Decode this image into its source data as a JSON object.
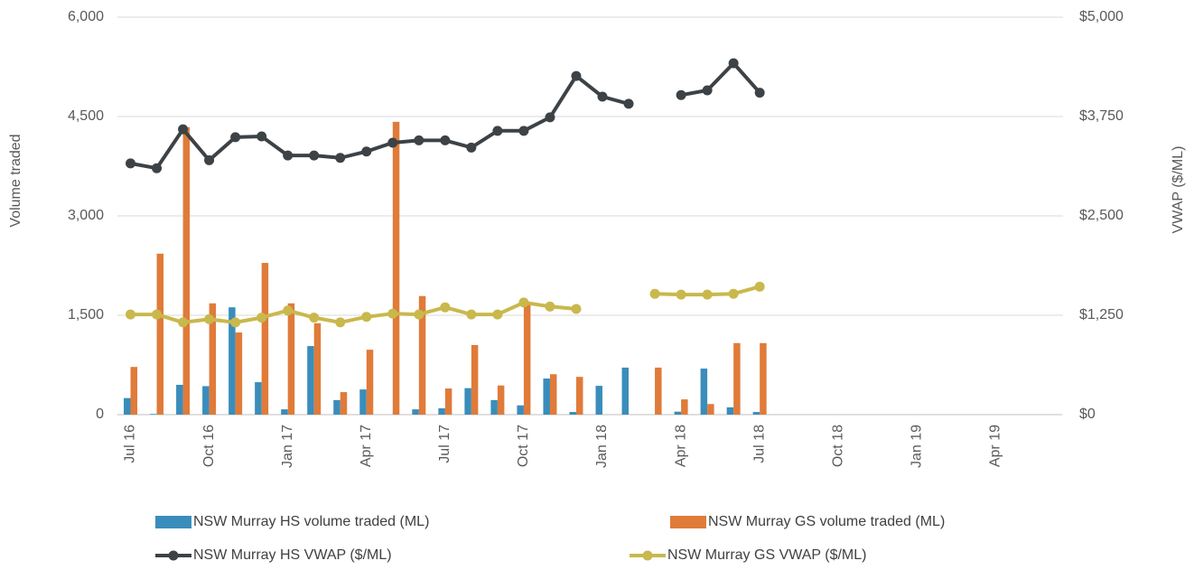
{
  "chart_data": {
    "type": "bar_line",
    "y_label": "Volume traded",
    "y2_label": "VWAP ($/ML)",
    "categories": [
      "Jul 16",
      null,
      null,
      "Oct 16",
      null,
      null,
      "Jan 17",
      null,
      null,
      "Apr 17",
      null,
      null,
      "Jul 17",
      null,
      null,
      "Oct 17",
      null,
      null,
      "Jan 18",
      null,
      null,
      "Apr 18",
      null,
      null,
      "Jul 18",
      null,
      null,
      "Oct 18",
      null,
      null,
      "Jan 19",
      null,
      null,
      "Apr 19",
      null,
      null
    ],
    "ylim": [
      0,
      6000
    ],
    "yticks": [
      0,
      {
        "value": 1500,
        "label": "1,500"
      },
      {
        "value": 3000,
        "label": "3,000"
      },
      {
        "value": 4500,
        "label": "4,500"
      },
      {
        "value": 6000,
        "label": "6,000"
      }
    ],
    "y2lim": [
      0,
      5000
    ],
    "y2ticks": [
      {
        "value": 0,
        "label": "$0"
      },
      {
        "value": 1250,
        "label": "$1,250"
      },
      {
        "value": 2500,
        "label": "$2,500"
      },
      {
        "value": 3750,
        "label": "$3,750"
      },
      {
        "value": 5000,
        "label": "$5,000"
      }
    ],
    "grid": true,
    "legend": "bottom",
    "series": [
      {
        "name": "NSW Murray HS volume traded (ML)",
        "type": "bar",
        "color": "#3a8dbb",
        "values": [
          250,
          10,
          450,
          430,
          1620,
          490,
          80,
          1035,
          220,
          380,
          0,
          80,
          95,
          400,
          220,
          140,
          545,
          40,
          435,
          710,
          0,
          45,
          695,
          110,
          40,
          null,
          null,
          null,
          null,
          null,
          null,
          null,
          null,
          null,
          null,
          null
        ]
      },
      {
        "name": "NSW Murray GS volume traded (ML)",
        "type": "bar",
        "color": "#e07b39",
        "values": [
          720,
          2430,
          4340,
          1680,
          1240,
          2290,
          1680,
          1380,
          340,
          980,
          4420,
          1790,
          395,
          1050,
          440,
          1690,
          610,
          570,
          0,
          0,
          710,
          230,
          160,
          1080,
          1080,
          null,
          null,
          null,
          null,
          null,
          null,
          null,
          null,
          null,
          null,
          null
        ]
      },
      {
        "name": "NSW Murray HS VWAP ($/ML)",
        "type": "line",
        "axis": "y2",
        "color": "#3c4246",
        "values": [
          3160,
          3100,
          3590,
          3200,
          3490,
          3500,
          3260,
          3260,
          3230,
          3310,
          3420,
          3450,
          3450,
          3360,
          3570,
          3570,
          3740,
          4260,
          4000,
          3910,
          null,
          4020,
          4080,
          4420,
          4050,
          null,
          null,
          null,
          null,
          null,
          null,
          null,
          null,
          null,
          null,
          null
        ]
      },
      {
        "name": "NSW Murray GS VWAP ($/ML)",
        "type": "line",
        "axis": "y2",
        "color": "#c9b84c",
        "values": [
          1260,
          1260,
          1160,
          1200,
          1160,
          1220,
          1310,
          1220,
          1160,
          1230,
          1270,
          1260,
          1350,
          1260,
          1260,
          1410,
          1360,
          1330,
          null,
          null,
          1520,
          1510,
          1510,
          1520,
          1610,
          null,
          null,
          null,
          null,
          null,
          null,
          null,
          null,
          null,
          null,
          null
        ]
      }
    ]
  }
}
